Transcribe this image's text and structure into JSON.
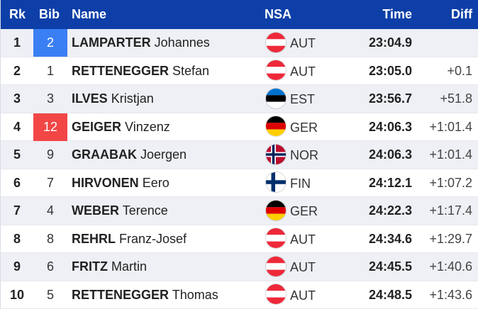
{
  "header": {
    "rank": "Rk",
    "bib": "Bib",
    "name": "Name",
    "nsa": "NSA",
    "time": "Time",
    "diff": "Diff"
  },
  "colors": {
    "header_bg": "#0e3fa8",
    "bib_blue": "#3b7ff5",
    "bib_red": "#f24646",
    "row_alt": "#eef0f5"
  },
  "rows": [
    {
      "rank": "1",
      "bib": "2",
      "bib_color": "blue",
      "surname": "LAMPARTER",
      "firstname": "Johannes",
      "nsa": "AUT",
      "flag": "austria-flag-icon",
      "time": "23:04.9",
      "diff": ""
    },
    {
      "rank": "2",
      "bib": "1",
      "bib_color": "",
      "surname": "RETTENEGGER",
      "firstname": "Stefan",
      "nsa": "AUT",
      "flag": "austria-flag-icon",
      "time": "23:05.0",
      "diff": "+0.1"
    },
    {
      "rank": "3",
      "bib": "3",
      "bib_color": "",
      "surname": "ILVES",
      "firstname": "Kristjan",
      "nsa": "EST",
      "flag": "estonia-flag-icon",
      "time": "23:56.7",
      "diff": "+51.8"
    },
    {
      "rank": "4",
      "bib": "12",
      "bib_color": "red",
      "surname": "GEIGER",
      "firstname": "Vinzenz",
      "nsa": "GER",
      "flag": "germany-flag-icon",
      "time": "24:06.3",
      "diff": "+1:01.4"
    },
    {
      "rank": "5",
      "bib": "9",
      "bib_color": "",
      "surname": "GRAABAK",
      "firstname": "Joergen",
      "nsa": "NOR",
      "flag": "norway-flag-icon",
      "time": "24:06.3",
      "diff": "+1:01.4"
    },
    {
      "rank": "6",
      "bib": "7",
      "bib_color": "",
      "surname": "HIRVONEN",
      "firstname": "Eero",
      "nsa": "FIN",
      "flag": "finland-flag-icon",
      "time": "24:12.1",
      "diff": "+1:07.2"
    },
    {
      "rank": "7",
      "bib": "4",
      "bib_color": "",
      "surname": "WEBER",
      "firstname": "Terence",
      "nsa": "GER",
      "flag": "germany-flag-icon",
      "time": "24:22.3",
      "diff": "+1:17.4"
    },
    {
      "rank": "8",
      "bib": "8",
      "bib_color": "",
      "surname": "REHRL",
      "firstname": "Franz-Josef",
      "nsa": "AUT",
      "flag": "austria-flag-icon",
      "time": "24:34.6",
      "diff": "+1:29.7"
    },
    {
      "rank": "9",
      "bib": "6",
      "bib_color": "",
      "surname": "FRITZ",
      "firstname": "Martin",
      "nsa": "AUT",
      "flag": "austria-flag-icon",
      "time": "24:45.5",
      "diff": "+1:40.6"
    },
    {
      "rank": "10",
      "bib": "5",
      "bib_color": "",
      "surname": "RETTENEGGER",
      "firstname": "Thomas",
      "nsa": "AUT",
      "flag": "austria-flag-icon",
      "time": "24:48.5",
      "diff": "+1:43.6"
    }
  ]
}
